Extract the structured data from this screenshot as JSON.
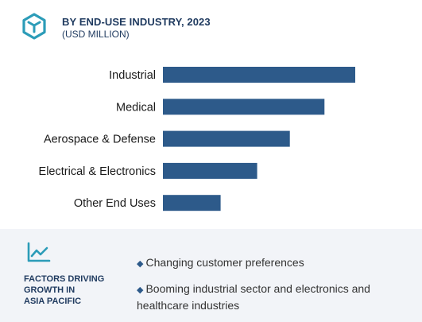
{
  "header": {
    "title": "BY END-USE INDUSTRY, 2023",
    "subtitle": "(USD MILLION)"
  },
  "colors": {
    "bar": "#2d5a8a",
    "accent": "#2c9cb8",
    "text_dark": "#1f3a5f",
    "footer_bg": "#f2f4f8"
  },
  "icons": {
    "logo": "cube-hexagon-icon",
    "trend": "trend-line-icon"
  },
  "chart_data": {
    "type": "bar",
    "orientation": "horizontal",
    "title": "BY END-USE INDUSTRY, 2023",
    "subtitle": "(USD MILLION)",
    "categories": [
      "Industrial",
      "Medical",
      "Aerospace & Defense",
      "Electrical & Electronics",
      "Other End Uses"
    ],
    "values": [
      100,
      84,
      66,
      49,
      30
    ],
    "xlim": [
      0,
      100
    ],
    "axis_labels_shown": false,
    "grid": false,
    "legend": "none"
  },
  "footer": {
    "factors_title_lines": [
      "FACTORS DRIVING",
      "GROWTH IN",
      "ASIA PACIFIC"
    ],
    "bullet_symbol": "◆",
    "factors": [
      "Changing customer preferences",
      "Booming industrial sector and electronics and healthcare industries"
    ]
  }
}
